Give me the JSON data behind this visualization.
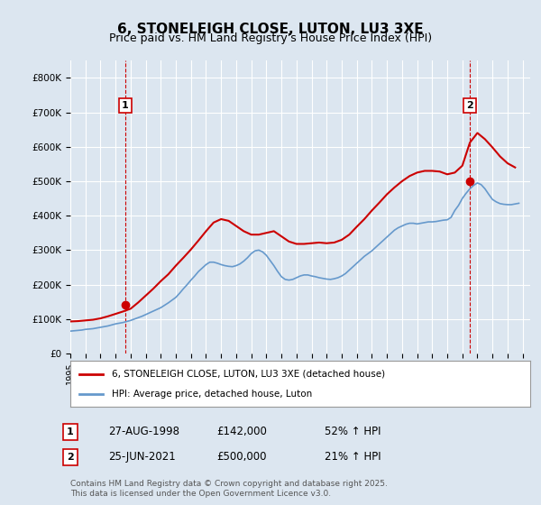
{
  "title": "6, STONELEIGH CLOSE, LUTON, LU3 3XE",
  "subtitle": "Price paid vs. HM Land Registry's House Price Index (HPI)",
  "background_color": "#dce6f0",
  "plot_bg_color": "#dce6f0",
  "grid_color": "#ffffff",
  "red_color": "#cc0000",
  "blue_color": "#6699cc",
  "vline_color": "#cc0000",
  "ylim": [
    0,
    850000
  ],
  "yticks": [
    0,
    100000,
    200000,
    300000,
    400000,
    500000,
    600000,
    700000,
    800000
  ],
  "xlim_start": 1995.0,
  "xlim_end": 2025.5,
  "xticks": [
    1995,
    1996,
    1997,
    1998,
    1999,
    2000,
    2001,
    2002,
    2003,
    2004,
    2005,
    2006,
    2007,
    2008,
    2009,
    2010,
    2011,
    2012,
    2013,
    2014,
    2015,
    2016,
    2017,
    2018,
    2019,
    2020,
    2021,
    2022,
    2023,
    2024,
    2025
  ],
  "sale1_x": 1998.65,
  "sale1_y": 142000,
  "sale2_x": 2021.48,
  "sale2_y": 500000,
  "legend_label_red": "6, STONELEIGH CLOSE, LUTON, LU3 3XE (detached house)",
  "legend_label_blue": "HPI: Average price, detached house, Luton",
  "footnote": "Contains HM Land Registry data © Crown copyright and database right 2025.\nThis data is licensed under the Open Government Licence v3.0.",
  "table": [
    [
      "1",
      "27-AUG-1998",
      "£142,000",
      "52% ↑ HPI"
    ],
    [
      "2",
      "25-JUN-2021",
      "£500,000",
      "21% ↑ HPI"
    ]
  ],
  "hpi_x": [
    1995.0,
    1995.25,
    1995.5,
    1995.75,
    1996.0,
    1996.25,
    1996.5,
    1996.75,
    1997.0,
    1997.25,
    1997.5,
    1997.75,
    1998.0,
    1998.25,
    1998.5,
    1998.75,
    1999.0,
    1999.25,
    1999.5,
    1999.75,
    2000.0,
    2000.25,
    2000.5,
    2000.75,
    2001.0,
    2001.25,
    2001.5,
    2001.75,
    2002.0,
    2002.25,
    2002.5,
    2002.75,
    2003.0,
    2003.25,
    2003.5,
    2003.75,
    2004.0,
    2004.25,
    2004.5,
    2004.75,
    2005.0,
    2005.25,
    2005.5,
    2005.75,
    2006.0,
    2006.25,
    2006.5,
    2006.75,
    2007.0,
    2007.25,
    2007.5,
    2007.75,
    2008.0,
    2008.25,
    2008.5,
    2008.75,
    2009.0,
    2009.25,
    2009.5,
    2009.75,
    2010.0,
    2010.25,
    2010.5,
    2010.75,
    2011.0,
    2011.25,
    2011.5,
    2011.75,
    2012.0,
    2012.25,
    2012.5,
    2012.75,
    2013.0,
    2013.25,
    2013.5,
    2013.75,
    2014.0,
    2014.25,
    2014.5,
    2014.75,
    2015.0,
    2015.25,
    2015.5,
    2015.75,
    2016.0,
    2016.25,
    2016.5,
    2016.75,
    2017.0,
    2017.25,
    2017.5,
    2017.75,
    2018.0,
    2018.25,
    2018.5,
    2018.75,
    2019.0,
    2019.25,
    2019.5,
    2019.75,
    2020.0,
    2020.25,
    2020.5,
    2020.75,
    2021.0,
    2021.25,
    2021.5,
    2021.75,
    2022.0,
    2022.25,
    2022.5,
    2022.75,
    2023.0,
    2023.25,
    2023.5,
    2023.75,
    2024.0,
    2024.25,
    2024.5,
    2024.75
  ],
  "hpi_y": [
    65000,
    66000,
    67000,
    68000,
    70000,
    71000,
    72000,
    74000,
    76000,
    78000,
    80000,
    83000,
    86000,
    88000,
    90000,
    93000,
    96000,
    100000,
    104000,
    108000,
    113000,
    118000,
    123000,
    128000,
    133000,
    140000,
    147000,
    155000,
    163000,
    175000,
    188000,
    200000,
    213000,
    225000,
    238000,
    248000,
    258000,
    265000,
    265000,
    262000,
    258000,
    255000,
    253000,
    252000,
    255000,
    260000,
    268000,
    278000,
    290000,
    298000,
    300000,
    295000,
    285000,
    270000,
    255000,
    238000,
    223000,
    215000,
    213000,
    215000,
    220000,
    225000,
    228000,
    228000,
    225000,
    223000,
    220000,
    218000,
    216000,
    215000,
    217000,
    220000,
    225000,
    232000,
    242000,
    252000,
    262000,
    272000,
    282000,
    290000,
    298000,
    308000,
    318000,
    328000,
    338000,
    348000,
    358000,
    365000,
    370000,
    375000,
    378000,
    378000,
    376000,
    378000,
    380000,
    382000,
    382000,
    383000,
    385000,
    387000,
    388000,
    395000,
    415000,
    430000,
    450000,
    465000,
    478000,
    488000,
    495000,
    490000,
    478000,
    462000,
    447000,
    440000,
    435000,
    433000,
    432000,
    432000,
    434000,
    436000
  ],
  "price_paid_x": [
    1995.0,
    1995.5,
    1996.0,
    1996.5,
    1997.0,
    1997.5,
    1998.0,
    1998.5,
    1999.0,
    1999.5,
    2000.0,
    2000.5,
    2001.0,
    2001.5,
    2002.0,
    2002.5,
    2003.0,
    2003.5,
    2004.0,
    2004.5,
    2005.0,
    2005.5,
    2006.0,
    2006.5,
    2007.0,
    2007.5,
    2008.0,
    2008.5,
    2009.0,
    2009.5,
    2010.0,
    2010.5,
    2011.0,
    2011.5,
    2012.0,
    2012.5,
    2013.0,
    2013.5,
    2014.0,
    2014.5,
    2015.0,
    2015.5,
    2016.0,
    2016.5,
    2017.0,
    2017.5,
    2018.0,
    2018.5,
    2019.0,
    2019.5,
    2020.0,
    2020.5,
    2021.0,
    2021.5,
    2022.0,
    2022.5,
    2023.0,
    2023.5,
    2024.0,
    2024.5
  ],
  "price_paid_y": [
    93000,
    94000,
    96000,
    98000,
    102000,
    108000,
    115000,
    122000,
    130000,
    148000,
    168000,
    188000,
    210000,
    230000,
    255000,
    278000,
    302000,
    328000,
    355000,
    380000,
    390000,
    385000,
    370000,
    355000,
    345000,
    345000,
    350000,
    355000,
    340000,
    325000,
    318000,
    318000,
    320000,
    322000,
    320000,
    322000,
    330000,
    345000,
    368000,
    390000,
    415000,
    438000,
    462000,
    482000,
    500000,
    515000,
    525000,
    530000,
    530000,
    528000,
    520000,
    525000,
    545000,
    612000,
    640000,
    622000,
    598000,
    572000,
    552000,
    540000
  ]
}
